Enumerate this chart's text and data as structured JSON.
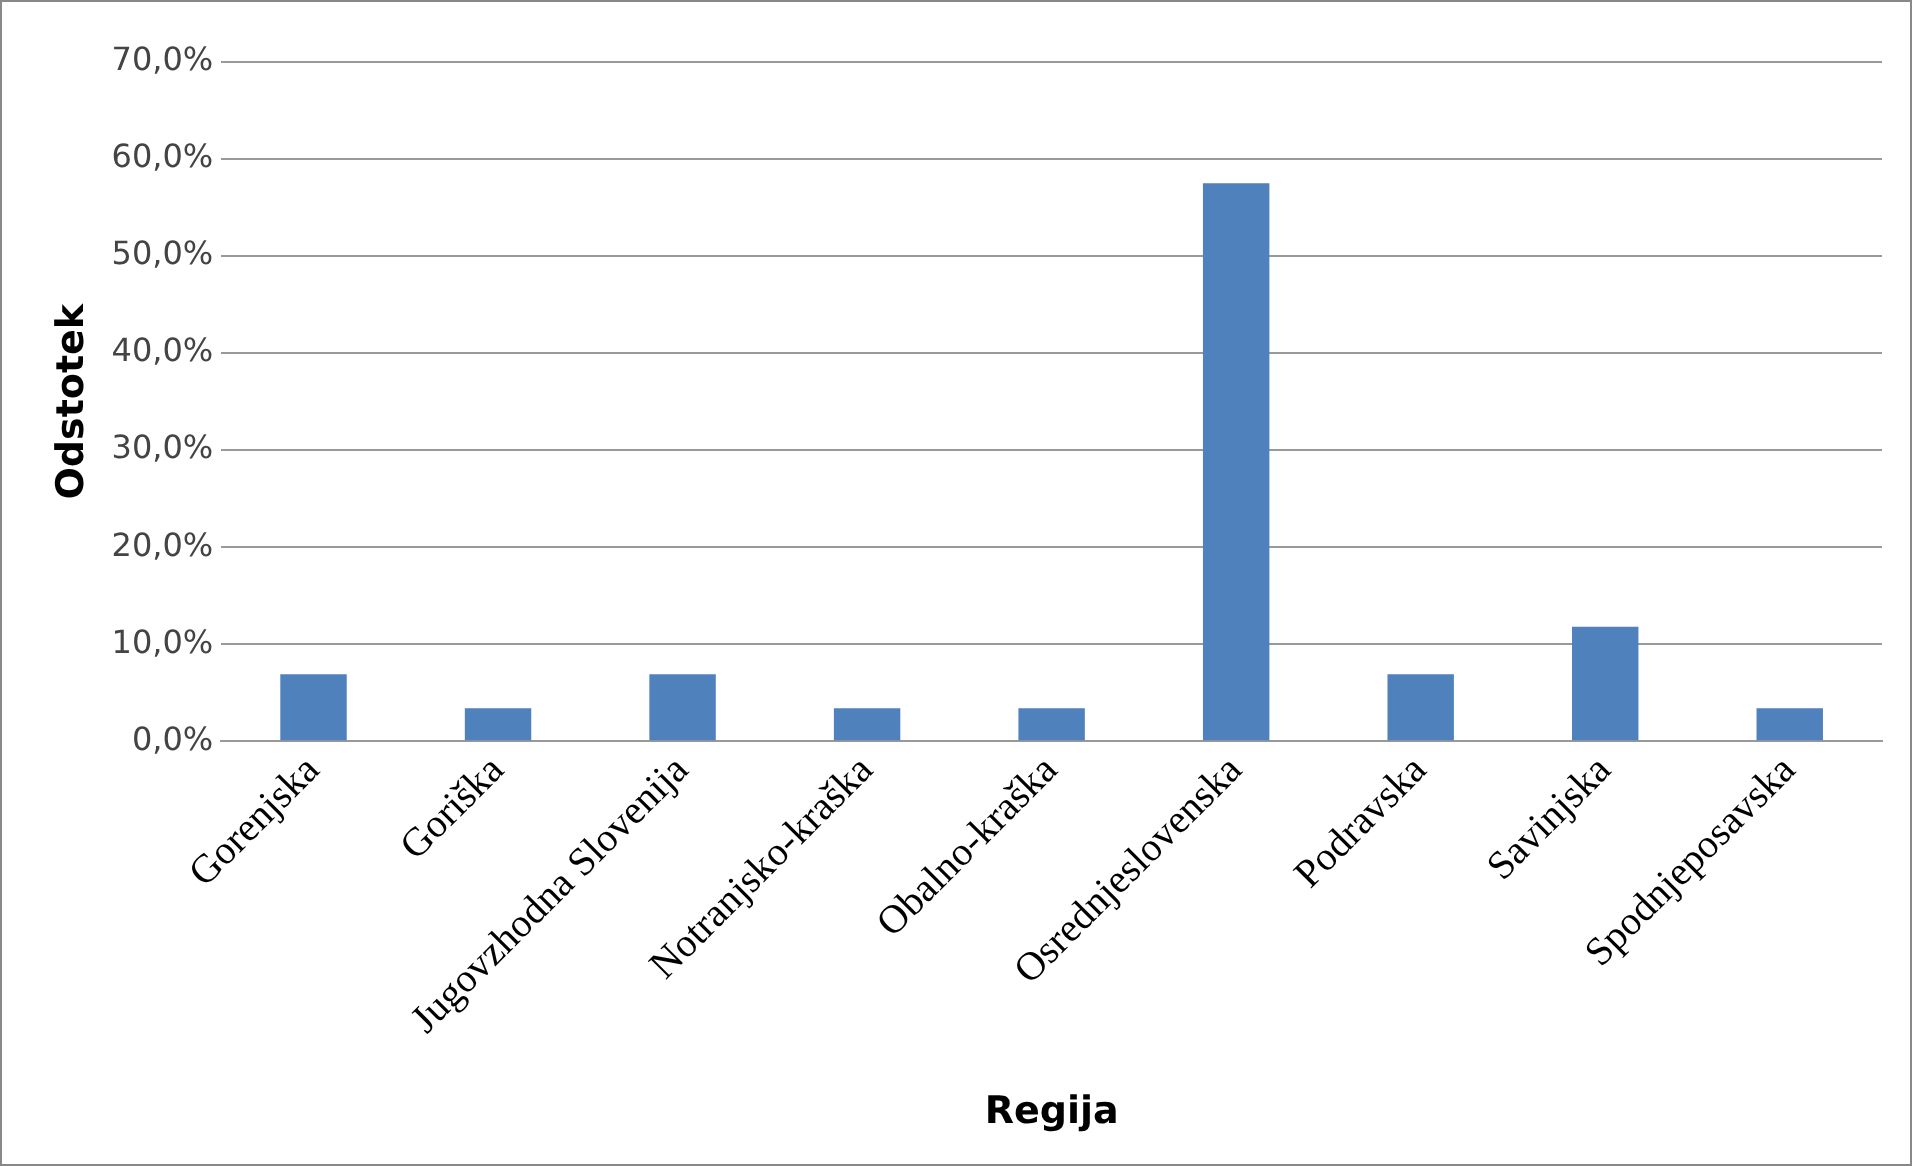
{
  "chart_data": {
    "type": "bar",
    "xlabel": "Regija",
    "ylabel": "Odstotek",
    "categories": [
      "Gorenjska",
      "Goriška",
      "Jugovzhodna Slovenija",
      "Notranjsko-kraška",
      "Obalno-kraška",
      "Osrednjeslovenska",
      "Podravska",
      "Savinjska",
      "Spodnjeposavska"
    ],
    "values": [
      6.9,
      3.4,
      6.9,
      3.4,
      3.4,
      57.5,
      6.9,
      11.8,
      3.4
    ],
    "color": "#4f81bd",
    "ylim": [
      0,
      70
    ],
    "yticks": [
      {
        "value": 0,
        "label": "0,0%"
      },
      {
        "value": 10,
        "label": "10,0%"
      },
      {
        "value": 20,
        "label": "20,0%"
      },
      {
        "value": 30,
        "label": "30,0%"
      },
      {
        "value": 40,
        "label": "40,0%"
      },
      {
        "value": 50,
        "label": "50,0%"
      },
      {
        "value": 60,
        "label": "60,0%"
      },
      {
        "value": 70,
        "label": "70,0%"
      }
    ],
    "grid": "y",
    "legend": false
  }
}
